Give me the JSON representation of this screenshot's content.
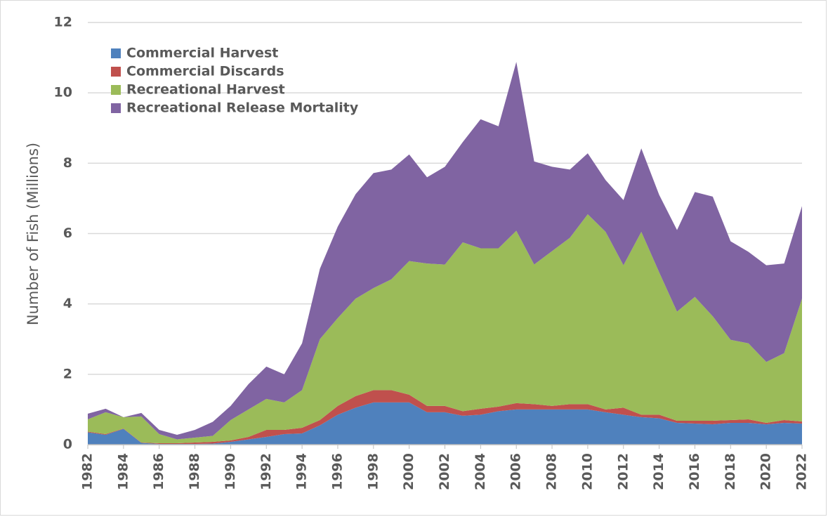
{
  "chart_data": {
    "type": "stacked-area",
    "y_label": "Number of Fish (Millions)",
    "x": [
      1982,
      1983,
      1984,
      1985,
      1986,
      1987,
      1988,
      1989,
      1990,
      1991,
      1992,
      1993,
      1994,
      1995,
      1996,
      1997,
      1998,
      1999,
      2000,
      2001,
      2002,
      2003,
      2004,
      2005,
      2006,
      2007,
      2008,
      2009,
      2010,
      2011,
      2012,
      2013,
      2014,
      2015,
      2016,
      2017,
      2018,
      2019,
      2020,
      2021,
      2022
    ],
    "series": [
      {
        "name": "Commercial Harvest",
        "color": "#4f81bd",
        "values": [
          0.35,
          0.28,
          0.45,
          0.05,
          0.02,
          0.02,
          0.02,
          0.03,
          0.08,
          0.15,
          0.22,
          0.3,
          0.32,
          0.55,
          0.85,
          1.05,
          1.2,
          1.2,
          1.2,
          0.92,
          0.92,
          0.82,
          0.85,
          0.95,
          1.0,
          1.0,
          1.0,
          1.0,
          1.0,
          0.92,
          0.85,
          0.78,
          0.75,
          0.62,
          0.6,
          0.58,
          0.62,
          0.62,
          0.58,
          0.62,
          0.6
        ]
      },
      {
        "name": "Commercial Discards",
        "color": "#c0504d",
        "values": [
          0.02,
          0.02,
          0.01,
          0.01,
          0.02,
          0.02,
          0.04,
          0.05,
          0.04,
          0.07,
          0.2,
          0.12,
          0.16,
          0.15,
          0.25,
          0.33,
          0.35,
          0.35,
          0.22,
          0.18,
          0.18,
          0.13,
          0.17,
          0.13,
          0.18,
          0.15,
          0.1,
          0.15,
          0.15,
          0.08,
          0.2,
          0.07,
          0.1,
          0.06,
          0.08,
          0.1,
          0.08,
          0.1,
          0.04,
          0.08,
          0.06
        ]
      },
      {
        "name": "Recreational Harvest",
        "color": "#9bbb59",
        "values": [
          0.35,
          0.62,
          0.32,
          0.74,
          0.26,
          0.11,
          0.14,
          0.17,
          0.58,
          0.78,
          0.88,
          0.78,
          1.07,
          2.3,
          2.5,
          2.77,
          2.9,
          3.15,
          3.8,
          4.05,
          4.02,
          4.8,
          4.56,
          4.5,
          4.9,
          3.97,
          4.4,
          4.73,
          5.4,
          5.05,
          4.05,
          5.2,
          4.05,
          3.1,
          3.52,
          2.97,
          2.28,
          2.16,
          1.73,
          1.9,
          3.49
        ]
      },
      {
        "name": "Recreational Release Mortality",
        "color": "#8064a2",
        "values": [
          0.16,
          0.1,
          0.0,
          0.1,
          0.12,
          0.13,
          0.22,
          0.4,
          0.4,
          0.72,
          0.92,
          0.8,
          1.33,
          2.0,
          2.6,
          2.97,
          3.27,
          3.12,
          3.03,
          2.45,
          2.78,
          2.85,
          3.67,
          3.47,
          4.8,
          2.93,
          2.4,
          1.94,
          1.73,
          1.47,
          1.85,
          2.37,
          2.2,
          2.32,
          2.98,
          3.4,
          2.8,
          2.6,
          2.75,
          2.55,
          2.63
        ]
      }
    ],
    "xlim": [
      1982,
      2022
    ],
    "xticks": [
      1982,
      1984,
      1986,
      1988,
      1990,
      1992,
      1994,
      1996,
      1998,
      2000,
      2002,
      2004,
      2006,
      2008,
      2010,
      2012,
      2014,
      2016,
      2018,
      2020,
      2022
    ],
    "ylim": [
      0,
      12
    ],
    "yticks": [
      0,
      2,
      4,
      6,
      8,
      10,
      12
    ],
    "grid": true,
    "legend": "upper left"
  }
}
